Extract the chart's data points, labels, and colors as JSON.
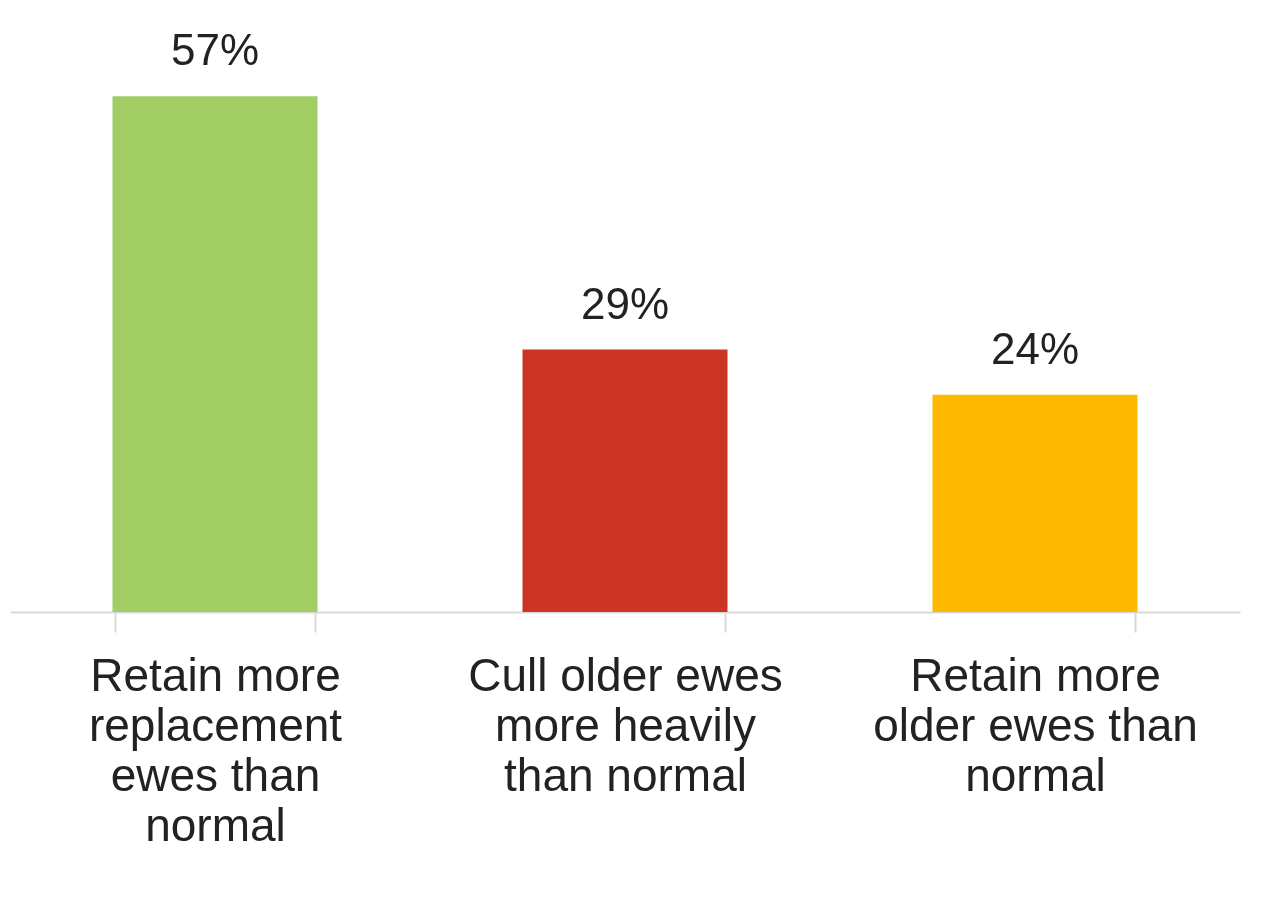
{
  "chart_data": {
    "type": "bar",
    "categories": [
      "Retain more replacement ewes than normal",
      "Cull older ewes more heavily than normal",
      "Retain more older ewes than normal"
    ],
    "values": [
      57,
      29,
      24
    ],
    "colors": [
      "#a1cd64",
      "#cc3424",
      "#ffb800"
    ],
    "value_labels": [
      "57%",
      "29%",
      "24%"
    ],
    "tick_labels": "x"
  }
}
